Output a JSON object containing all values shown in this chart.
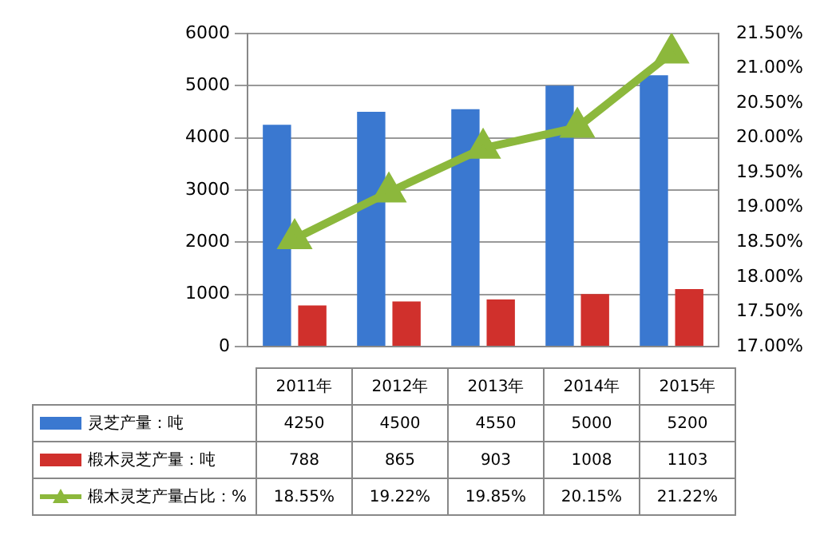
{
  "chart_data": {
    "type": "bar",
    "categories": [
      "2011年",
      "2012年",
      "2013年",
      "2014年",
      "2015年"
    ],
    "series": [
      {
        "name": "灵芝产量：吨",
        "color": "#3a78d0",
        "values": [
          4250,
          4500,
          4550,
          5000,
          5200
        ]
      },
      {
        "name": "椴木灵芝产量：吨",
        "color": "#d0302c",
        "values": [
          788,
          865,
          903,
          1008,
          1103
        ]
      },
      {
        "name": "椴木灵芝产量占比：%",
        "type": "line",
        "axis": "y2",
        "color": "#8cb83c",
        "marker": "triangle",
        "values": [
          18.55,
          19.22,
          19.85,
          20.15,
          21.22
        ],
        "value_labels": [
          "18.55%",
          "19.22%",
          "19.85%",
          "20.15%",
          "21.22%"
        ]
      }
    ],
    "ylim": [
      0,
      6000
    ],
    "yticks": [
      0,
      1000,
      2000,
      3000,
      4000,
      5000,
      6000
    ],
    "y2lim": [
      17,
      21.5
    ],
    "y2ticks": [
      {
        "value": 17,
        "label": "17.00%"
      },
      {
        "value": 17.5,
        "label": "17.50%"
      },
      {
        "value": 18,
        "label": "18.00%"
      },
      {
        "value": 18.5,
        "label": "18.50%"
      },
      {
        "value": 19,
        "label": "19.00%"
      },
      {
        "value": 19.5,
        "label": "19.50%"
      },
      {
        "value": 20,
        "label": "20.00%"
      },
      {
        "value": 20.5,
        "label": "20.50%"
      },
      {
        "value": 21,
        "label": "21.00%"
      },
      {
        "value": 21.5,
        "label": "21.50%"
      }
    ],
    "grid": "y",
    "legend": "bottom",
    "data_labels": true
  }
}
